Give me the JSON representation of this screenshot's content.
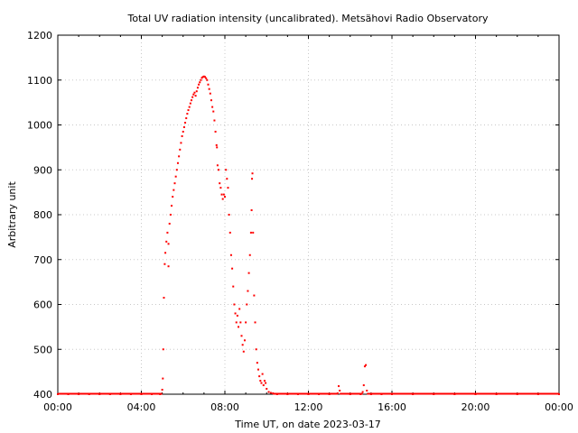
{
  "chart_data": {
    "type": "scatter",
    "title": "Total UV radiation intensity (uncalibrated). Metsähovi Radio Observatory",
    "xlabel": "Time UT, on date 2023-03-17",
    "ylabel": "Arbitrary unit",
    "x_unit": "hours UT",
    "xlim": [
      0,
      24
    ],
    "ylim": [
      400,
      1200
    ],
    "x_ticks": [
      {
        "value": 0,
        "label": "00:00"
      },
      {
        "value": 4,
        "label": "04:00"
      },
      {
        "value": 8,
        "label": "08:00"
      },
      {
        "value": 12,
        "label": "12:00"
      },
      {
        "value": 16,
        "label": "16:00"
      },
      {
        "value": 20,
        "label": "20:00"
      },
      {
        "value": 24,
        "label": "00:00"
      }
    ],
    "y_ticks": [
      {
        "value": 400,
        "label": "400"
      },
      {
        "value": 500,
        "label": "500"
      },
      {
        "value": 600,
        "label": "600"
      },
      {
        "value": 700,
        "label": "700"
      },
      {
        "value": 800,
        "label": "800"
      },
      {
        "value": 900,
        "label": "900"
      },
      {
        "value": 1000,
        "label": "1000"
      },
      {
        "value": 1100,
        "label": "1100"
      },
      {
        "value": 1200,
        "label": "1200"
      }
    ],
    "grid": true,
    "marker_color": "#ff0000",
    "series": [
      {
        "points": [
          [
            0.0,
            400
          ],
          [
            0.5,
            400
          ],
          [
            1.0,
            400
          ],
          [
            1.5,
            400
          ],
          [
            2.0,
            400
          ],
          [
            2.5,
            400
          ],
          [
            3.0,
            400
          ],
          [
            3.5,
            400
          ],
          [
            4.0,
            400
          ],
          [
            4.5,
            400
          ],
          [
            4.9,
            400
          ],
          [
            5.0,
            410
          ],
          [
            5.03,
            435
          ],
          [
            5.05,
            500
          ],
          [
            5.08,
            615
          ],
          [
            5.12,
            690
          ],
          [
            5.15,
            715
          ],
          [
            5.2,
            740
          ],
          [
            5.25,
            760
          ],
          [
            5.3,
            735
          ],
          [
            5.3,
            685
          ],
          [
            5.35,
            780
          ],
          [
            5.4,
            800
          ],
          [
            5.45,
            820
          ],
          [
            5.5,
            840
          ],
          [
            5.55,
            855
          ],
          [
            5.6,
            870
          ],
          [
            5.65,
            885
          ],
          [
            5.7,
            900
          ],
          [
            5.75,
            915
          ],
          [
            5.8,
            930
          ],
          [
            5.85,
            945
          ],
          [
            5.9,
            960
          ],
          [
            5.95,
            975
          ],
          [
            6.0,
            985
          ],
          [
            6.05,
            995
          ],
          [
            6.1,
            1005
          ],
          [
            6.15,
            1015
          ],
          [
            6.2,
            1025
          ],
          [
            6.25,
            1033
          ],
          [
            6.3,
            1040
          ],
          [
            6.35,
            1048
          ],
          [
            6.4,
            1055
          ],
          [
            6.45,
            1062
          ],
          [
            6.5,
            1068
          ],
          [
            6.55,
            1072
          ],
          [
            6.6,
            1065
          ],
          [
            6.65,
            1075
          ],
          [
            6.7,
            1083
          ],
          [
            6.75,
            1090
          ],
          [
            6.8,
            1095
          ],
          [
            6.85,
            1100
          ],
          [
            6.9,
            1105
          ],
          [
            6.95,
            1107
          ],
          [
            7.0,
            1108
          ],
          [
            7.05,
            1107
          ],
          [
            7.1,
            1104
          ],
          [
            7.15,
            1100
          ],
          [
            7.2,
            1090
          ],
          [
            7.25,
            1080
          ],
          [
            7.3,
            1070
          ],
          [
            7.35,
            1055
          ],
          [
            7.4,
            1040
          ],
          [
            7.45,
            1030
          ],
          [
            7.5,
            1010
          ],
          [
            7.55,
            985
          ],
          [
            7.6,
            955
          ],
          [
            7.62,
            950
          ],
          [
            7.65,
            910
          ],
          [
            7.7,
            900
          ],
          [
            7.75,
            870
          ],
          [
            7.8,
            860
          ],
          [
            7.85,
            845
          ],
          [
            7.9,
            835
          ],
          [
            7.95,
            845
          ],
          [
            8.0,
            840
          ],
          [
            8.05,
            900
          ],
          [
            8.1,
            880
          ],
          [
            8.15,
            860
          ],
          [
            8.2,
            800
          ],
          [
            8.25,
            760
          ],
          [
            8.3,
            710
          ],
          [
            8.35,
            680
          ],
          [
            8.4,
            640
          ],
          [
            8.45,
            600
          ],
          [
            8.5,
            580
          ],
          [
            8.55,
            560
          ],
          [
            8.6,
            575
          ],
          [
            8.65,
            550
          ],
          [
            8.7,
            590
          ],
          [
            8.75,
            560
          ],
          [
            8.8,
            530
          ],
          [
            8.85,
            510
          ],
          [
            8.9,
            495
          ],
          [
            8.95,
            520
          ],
          [
            9.0,
            560
          ],
          [
            9.05,
            600
          ],
          [
            9.1,
            630
          ],
          [
            9.15,
            670
          ],
          [
            9.2,
            710
          ],
          [
            9.25,
            760
          ],
          [
            9.28,
            810
          ],
          [
            9.3,
            880
          ],
          [
            9.32,
            892
          ],
          [
            9.35,
            760
          ],
          [
            9.4,
            620
          ],
          [
            9.45,
            560
          ],
          [
            9.5,
            500
          ],
          [
            9.55,
            470
          ],
          [
            9.6,
            455
          ],
          [
            9.65,
            440
          ],
          [
            9.7,
            430
          ],
          [
            9.75,
            425
          ],
          [
            9.8,
            445
          ],
          [
            9.85,
            420
          ],
          [
            9.9,
            430
          ],
          [
            9.95,
            425
          ],
          [
            10.0,
            412
          ],
          [
            10.1,
            405
          ],
          [
            10.2,
            403
          ],
          [
            10.3,
            402
          ],
          [
            10.5,
            400
          ],
          [
            11.0,
            400
          ],
          [
            11.5,
            400
          ],
          [
            12.0,
            400
          ],
          [
            12.5,
            400
          ],
          [
            13.0,
            400
          ],
          [
            13.4,
            402
          ],
          [
            13.45,
            418
          ],
          [
            13.5,
            408
          ],
          [
            14.0,
            400
          ],
          [
            14.5,
            400
          ],
          [
            14.6,
            405
          ],
          [
            14.65,
            420
          ],
          [
            14.7,
            462
          ],
          [
            14.75,
            465
          ],
          [
            14.8,
            408
          ],
          [
            15.0,
            400
          ],
          [
            15.5,
            400
          ],
          [
            16.0,
            400
          ],
          [
            17.0,
            400
          ],
          [
            18.0,
            400
          ],
          [
            19.0,
            400
          ],
          [
            20.0,
            400
          ],
          [
            21.0,
            400
          ],
          [
            22.0,
            400
          ],
          [
            23.0,
            400
          ],
          [
            24.0,
            400
          ]
        ]
      }
    ]
  }
}
